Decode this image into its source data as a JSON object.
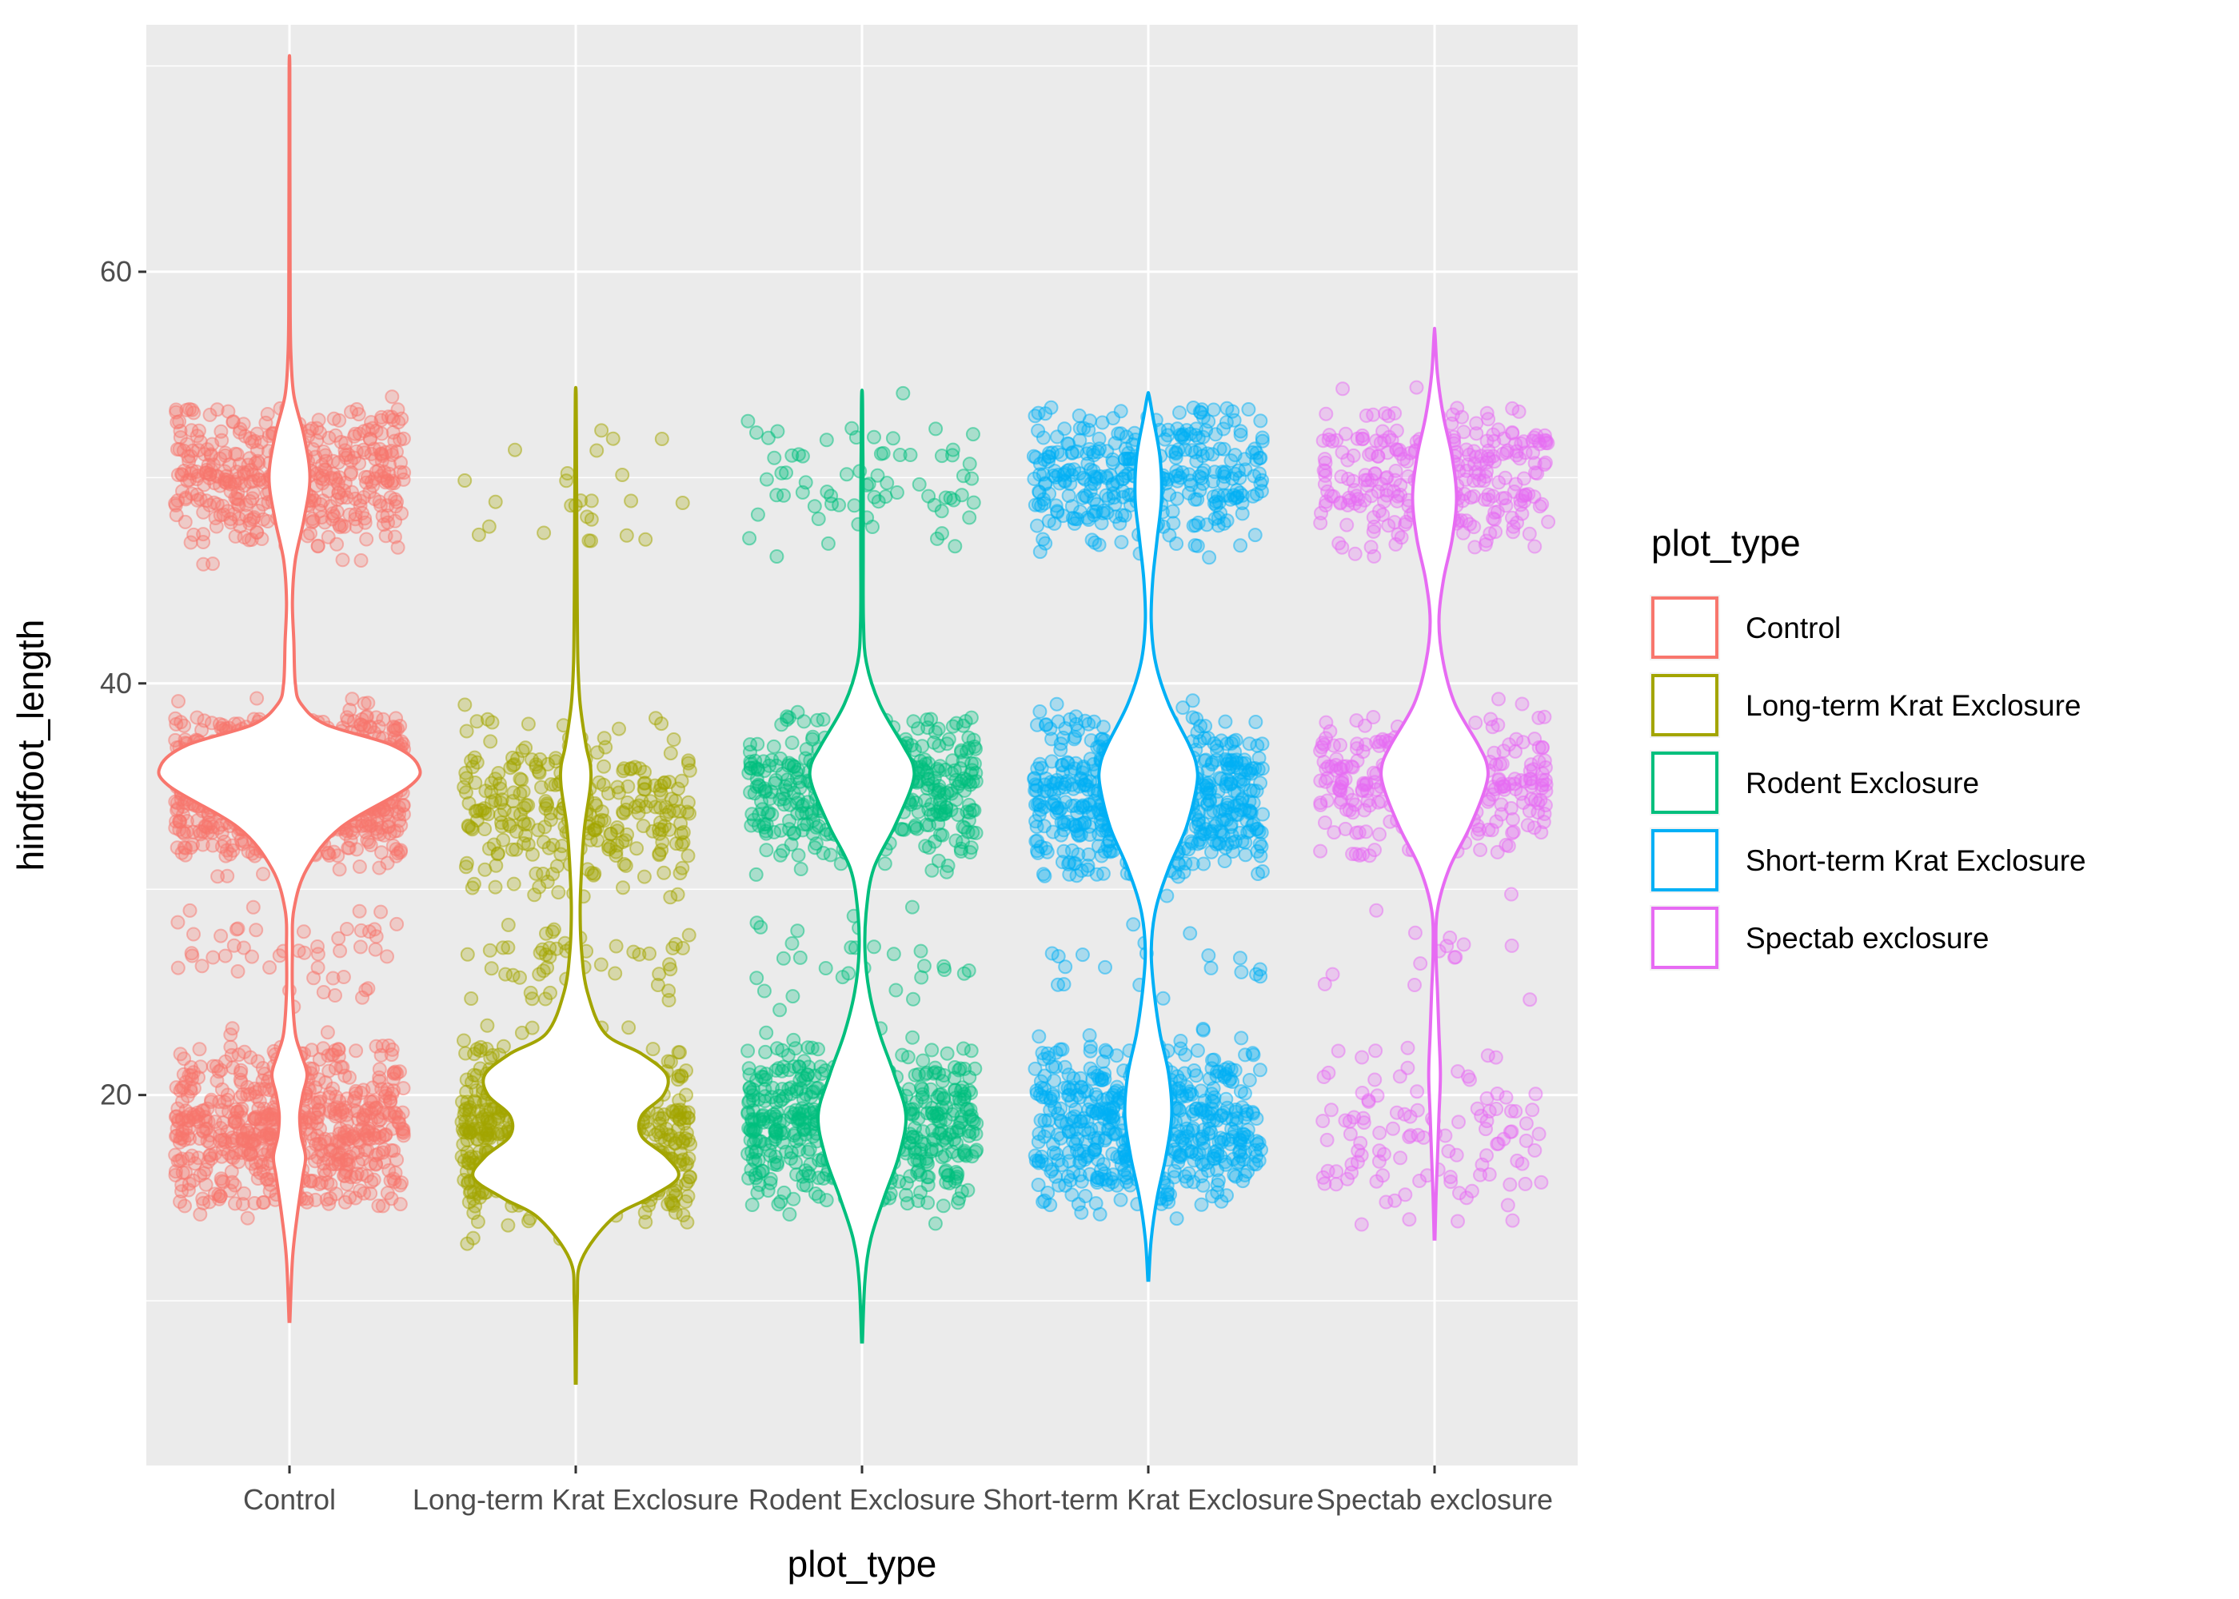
{
  "chart_data": {
    "type": "violin",
    "title": "",
    "xlabel": "plot_type",
    "ylabel": "hindfoot_length",
    "ylim": [
      2,
      72
    ],
    "yticks": [
      20,
      40,
      60
    ],
    "grid": true,
    "legend": {
      "title": "plot_type",
      "position": "right"
    },
    "categories": [
      "Control",
      "Long-term Krat Exclosure",
      "Rodent Exclosure",
      "Short-term Krat Exclosure",
      "Spectab exclosure"
    ],
    "colors": [
      "#F8766D",
      "#A3A500",
      "#00BF7D",
      "#00B0F6",
      "#E76BF3"
    ],
    "series": [
      {
        "name": "Control",
        "min": 9,
        "max": 70,
        "clusters": [
          {
            "low": 46,
            "high": 54,
            "center": 50,
            "n": 420
          },
          {
            "low": 31,
            "high": 39,
            "center": 36,
            "n": 1100
          },
          {
            "low": 14,
            "high": 23,
            "center": 18,
            "n": 650
          },
          {
            "low": 24,
            "high": 30,
            "center": 27,
            "n": 50
          }
        ],
        "violin": [
          [
            9,
            0.3
          ],
          [
            12,
            2
          ],
          [
            14,
            5
          ],
          [
            16,
            9
          ],
          [
            17,
            11
          ],
          [
            18,
            8
          ],
          [
            19,
            7
          ],
          [
            20,
            9
          ],
          [
            21,
            12
          ],
          [
            22,
            8
          ],
          [
            23,
            4
          ],
          [
            25,
            2
          ],
          [
            27,
            2
          ],
          [
            29,
            3
          ],
          [
            31,
            12
          ],
          [
            33,
            35
          ],
          [
            35,
            82
          ],
          [
            36,
            88
          ],
          [
            37,
            70
          ],
          [
            38,
            25
          ],
          [
            39,
            8
          ],
          [
            40,
            4
          ],
          [
            42,
            3
          ],
          [
            44,
            2
          ],
          [
            46,
            4
          ],
          [
            48,
            10
          ],
          [
            50,
            14
          ],
          [
            52,
            10
          ],
          [
            54,
            3
          ],
          [
            56,
            1
          ],
          [
            58,
            0.5
          ],
          [
            62,
            0.4
          ],
          [
            66,
            0.3
          ],
          [
            70,
            0.2
          ]
        ]
      },
      {
        "name": "Long-term Krat Exclosure",
        "min": 6,
        "max": 54,
        "clusters": [
          {
            "low": 13,
            "high": 23,
            "center": 18,
            "n": 750
          },
          {
            "low": 29,
            "high": 39,
            "center": 34,
            "n": 280
          },
          {
            "low": 24,
            "high": 29,
            "center": 26,
            "n": 50
          },
          {
            "low": 46,
            "high": 53,
            "center": 50,
            "n": 25
          }
        ],
        "violin": [
          [
            6,
            0.3
          ],
          [
            10,
            1
          ],
          [
            12,
            4
          ],
          [
            14,
            25
          ],
          [
            15,
            50
          ],
          [
            16,
            70
          ],
          [
            17,
            62
          ],
          [
            18,
            45
          ],
          [
            19,
            45
          ],
          [
            20,
            60
          ],
          [
            21,
            62
          ],
          [
            22,
            45
          ],
          [
            23,
            20
          ],
          [
            25,
            8
          ],
          [
            27,
            4
          ],
          [
            29,
            3
          ],
          [
            31,
            4
          ],
          [
            33,
            6
          ],
          [
            35,
            10
          ],
          [
            36,
            10
          ],
          [
            37,
            7
          ],
          [
            39,
            3
          ],
          [
            41,
            1.5
          ],
          [
            44,
            1
          ],
          [
            48,
            0.7
          ],
          [
            51,
            0.5
          ],
          [
            54,
            0.3
          ]
        ]
      },
      {
        "name": "Rodent Exclosure",
        "min": 8,
        "max": 54,
        "clusters": [
          {
            "low": 14,
            "high": 23,
            "center": 18,
            "n": 550
          },
          {
            "low": 31,
            "high": 39,
            "center": 36,
            "n": 420
          },
          {
            "low": 46,
            "high": 54,
            "center": 50,
            "n": 70
          },
          {
            "low": 24,
            "high": 30,
            "center": 27,
            "n": 30
          }
        ],
        "violin": [
          [
            8,
            0.3
          ],
          [
            11,
            2
          ],
          [
            13,
            6
          ],
          [
            15,
            15
          ],
          [
            17,
            25
          ],
          [
            19,
            30
          ],
          [
            21,
            22
          ],
          [
            23,
            12
          ],
          [
            25,
            5
          ],
          [
            27,
            2
          ],
          [
            29,
            3
          ],
          [
            31,
            8
          ],
          [
            33,
            22
          ],
          [
            35,
            34
          ],
          [
            36,
            35
          ],
          [
            37,
            28
          ],
          [
            39,
            12
          ],
          [
            41,
            3
          ],
          [
            43,
            1
          ],
          [
            46,
            0.8
          ],
          [
            49,
            0.8
          ],
          [
            52,
            0.5
          ],
          [
            54,
            0.3
          ]
        ]
      },
      {
        "name": "Short-term Krat Exclosure",
        "min": 11,
        "max": 54,
        "clusters": [
          {
            "low": 14,
            "high": 23,
            "center": 19,
            "n": 550
          },
          {
            "low": 30,
            "high": 39,
            "center": 36,
            "n": 600
          },
          {
            "low": 46,
            "high": 54,
            "center": 50,
            "n": 350
          },
          {
            "low": 24,
            "high": 29,
            "center": 26,
            "n": 20
          }
        ],
        "violin": [
          [
            11,
            0.3
          ],
          [
            13,
            2
          ],
          [
            15,
            6
          ],
          [
            17,
            12
          ],
          [
            19,
            16
          ],
          [
            21,
            14
          ],
          [
            23,
            8
          ],
          [
            25,
            4
          ],
          [
            27,
            2
          ],
          [
            29,
            5
          ],
          [
            31,
            14
          ],
          [
            33,
            26
          ],
          [
            35,
            33
          ],
          [
            36,
            33
          ],
          [
            37,
            28
          ],
          [
            39,
            14
          ],
          [
            41,
            5
          ],
          [
            43,
            2
          ],
          [
            45,
            3
          ],
          [
            47,
            6
          ],
          [
            49,
            9
          ],
          [
            51,
            8
          ],
          [
            53,
            3
          ],
          [
            54,
            0.5
          ]
        ]
      },
      {
        "name": "Spectab exclosure",
        "min": 13,
        "max": 57,
        "clusters": [
          {
            "low": 31,
            "high": 39,
            "center": 36,
            "n": 300
          },
          {
            "low": 46,
            "high": 54,
            "center": 50,
            "n": 300
          },
          {
            "low": 13,
            "high": 23,
            "center": 19,
            "n": 110
          },
          {
            "low": 24,
            "high": 30,
            "center": 27,
            "n": 15
          }
        ],
        "violin": [
          [
            13,
            0.3
          ],
          [
            15,
            1
          ],
          [
            17,
            2
          ],
          [
            19,
            3
          ],
          [
            21,
            4
          ],
          [
            23,
            3
          ],
          [
            25,
            2
          ],
          [
            27,
            1
          ],
          [
            29,
            2
          ],
          [
            31,
            10
          ],
          [
            33,
            24
          ],
          [
            35,
            35
          ],
          [
            36,
            36
          ],
          [
            37,
            30
          ],
          [
            39,
            14
          ],
          [
            41,
            6
          ],
          [
            43,
            3
          ],
          [
            45,
            6
          ],
          [
            47,
            12
          ],
          [
            49,
            15
          ],
          [
            51,
            12
          ],
          [
            53,
            6
          ],
          [
            55,
            2
          ],
          [
            57,
            0.3
          ]
        ]
      }
    ]
  }
}
